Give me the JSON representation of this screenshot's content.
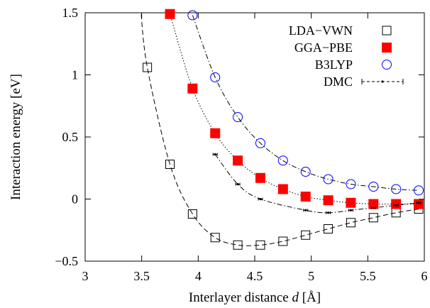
{
  "chart_data": {
    "type": "scatter",
    "title": "",
    "xlabel": "Interlayer distance d [Å]",
    "xlabel_parts": [
      "Interlayer distance ",
      "d",
      " [Å]"
    ],
    "ylabel": "Interaction energy [eV]",
    "xlim": [
      3,
      6
    ],
    "ylim": [
      -0.5,
      1.5
    ],
    "xticks": [
      3,
      3.5,
      4,
      4.5,
      5,
      5.5,
      6
    ],
    "xtick_labels": [
      "3",
      "3.5",
      "4",
      "4.5",
      "5",
      "5.5",
      "6"
    ],
    "yticks": [
      -0.5,
      0,
      0.5,
      1,
      1.5
    ],
    "ytick_labels": [
      "−0.5",
      "0",
      "0.5",
      "1",
      "1.5"
    ],
    "grid": false,
    "legend_position": "top-right",
    "series": [
      {
        "name": "LDA−VWN",
        "marker": "open-square",
        "color": "#000000",
        "line": "dashed",
        "x": [
          3.55,
          3.75,
          3.95,
          4.15,
          4.35,
          4.55,
          4.75,
          4.95,
          5.15,
          5.35,
          5.55,
          5.75,
          5.95
        ],
        "y": [
          1.06,
          0.28,
          -0.12,
          -0.31,
          -0.37,
          -0.37,
          -0.34,
          -0.29,
          -0.24,
          -0.19,
          -0.15,
          -0.11,
          -0.08
        ]
      },
      {
        "name": "GGA−PBE",
        "marker": "filled-square",
        "color": "#ff0000",
        "line": "dotted",
        "x": [
          3.75,
          3.95,
          4.15,
          4.35,
          4.55,
          4.75,
          4.95,
          5.15,
          5.35,
          5.55,
          5.75,
          5.95
        ],
        "y": [
          1.49,
          0.89,
          0.53,
          0.31,
          0.17,
          0.08,
          0.02,
          -0.01,
          -0.03,
          -0.04,
          -0.04,
          -0.04
        ]
      },
      {
        "name": "B3LYP",
        "marker": "open-circle",
        "color": "#0000ff",
        "line": "dash-dot",
        "x": [
          3.95,
          4.15,
          4.35,
          4.55,
          4.75,
          4.95,
          5.15,
          5.35,
          5.55,
          5.75,
          5.95
        ],
        "y": [
          1.48,
          0.98,
          0.66,
          0.45,
          0.31,
          0.22,
          0.16,
          0.12,
          0.1,
          0.08,
          0.07
        ]
      },
      {
        "name": "DMC",
        "marker": "errorbar",
        "color": "#000000",
        "line": "dash-dot",
        "x": [
          4.15,
          4.35,
          4.55,
          4.95,
          5.15,
          5.35,
          5.55,
          5.75,
          5.95
        ],
        "y": [
          0.36,
          0.12,
          0.0,
          -0.09,
          -0.11,
          -0.09,
          -0.07,
          -0.05,
          -0.03
        ]
      }
    ]
  }
}
